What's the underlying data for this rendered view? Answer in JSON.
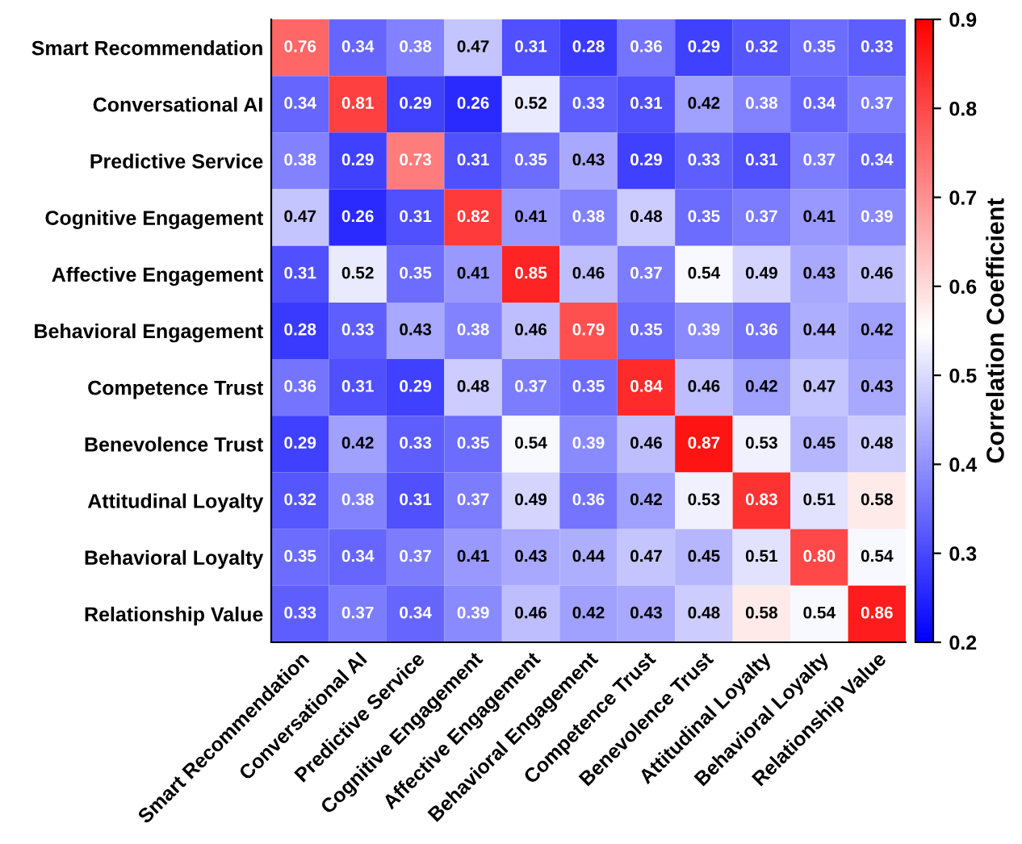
{
  "chart_data": {
    "type": "heatmap",
    "clabel": "Correlation Coefficient",
    "categories": [
      "Smart Recommendation",
      "Conversational AI",
      "Predictive Service",
      "Cognitive Engagement",
      "Affective Engagement",
      "Behavioral Engagement",
      "Competence Trust",
      "Benevolence Trust",
      "Attitudinal Loyalty",
      "Behavioral Loyalty",
      "Relationship Value"
    ],
    "y_categories": [
      "Smart Recommendation",
      "Conversational AI",
      "Predictive Service",
      "Cognitive Engagement",
      "Affective Engagement",
      "Behavioral Engagement",
      "Competence Trust",
      "Benevolence Trust",
      "Attitudinal Loyalty",
      "Behavioral Loyalty",
      "Relationship Value"
    ],
    "cells": [
      [
        0.76,
        0.34,
        0.38,
        0.47,
        0.31,
        0.28,
        0.36,
        0.29,
        0.32,
        0.35,
        0.33
      ],
      [
        0.34,
        0.81,
        0.29,
        0.26,
        0.52,
        0.33,
        0.31,
        0.42,
        0.38,
        0.34,
        0.37
      ],
      [
        0.38,
        0.29,
        0.73,
        0.31,
        0.35,
        0.43,
        0.29,
        0.33,
        0.31,
        0.37,
        0.34
      ],
      [
        0.47,
        0.26,
        0.31,
        0.82,
        0.41,
        0.38,
        0.48,
        0.35,
        0.37,
        0.41,
        0.39
      ],
      [
        0.31,
        0.52,
        0.35,
        0.41,
        0.85,
        0.46,
        0.37,
        0.54,
        0.49,
        0.43,
        0.46
      ],
      [
        0.28,
        0.33,
        0.43,
        0.38,
        0.46,
        0.79,
        0.35,
        0.39,
        0.36,
        0.44,
        0.42
      ],
      [
        0.36,
        0.31,
        0.29,
        0.48,
        0.37,
        0.35,
        0.84,
        0.46,
        0.42,
        0.47,
        0.43
      ],
      [
        0.29,
        0.42,
        0.33,
        0.35,
        0.54,
        0.39,
        0.46,
        0.87,
        0.53,
        0.45,
        0.48
      ],
      [
        0.32,
        0.38,
        0.31,
        0.37,
        0.49,
        0.36,
        0.42,
        0.53,
        0.83,
        0.51,
        0.58
      ],
      [
        0.35,
        0.34,
        0.37,
        0.41,
        0.43,
        0.44,
        0.47,
        0.45,
        0.51,
        0.8,
        0.54
      ],
      [
        0.33,
        0.37,
        0.34,
        0.39,
        0.46,
        0.42,
        0.43,
        0.48,
        0.58,
        0.54,
        0.86
      ]
    ],
    "cell_labels": [
      [
        "0.76",
        "0.34",
        "0.38",
        "0.47",
        "0.31",
        "0.28",
        "0.36",
        "0.29",
        "0.32",
        "0.35",
        "0.33"
      ],
      [
        "0.34",
        "0.81",
        "0.29",
        "0.26",
        "0.52",
        "0.33",
        "0.31",
        "0.42",
        "0.38",
        "0.34",
        "0.37"
      ],
      [
        "0.38",
        "0.29",
        "0.73",
        "0.31",
        "0.35",
        "0.43",
        "0.29",
        "0.33",
        "0.31",
        "0.37",
        "0.34"
      ],
      [
        "0.47",
        "0.26",
        "0.31",
        "0.82",
        "0.41",
        "0.38",
        "0.48",
        "0.35",
        "0.37",
        "0.41",
        "0.39"
      ],
      [
        "0.31",
        "0.52",
        "0.35",
        "0.41",
        "0.85",
        "0.46",
        "0.37",
        "0.54",
        "0.49",
        "0.43",
        "0.46"
      ],
      [
        "0.28",
        "0.33",
        "0.43",
        "0.38",
        "0.46",
        "0.79",
        "0.35",
        "0.39",
        "0.36",
        "0.44",
        "0.42"
      ],
      [
        "0.36",
        "0.31",
        "0.29",
        "0.48",
        "0.37",
        "0.35",
        "0.84",
        "0.46",
        "0.42",
        "0.47",
        "0.43"
      ],
      [
        "0.29",
        "0.42",
        "0.33",
        "0.35",
        "0.54",
        "0.39",
        "0.46",
        "0.87",
        "0.53",
        "0.45",
        "0.48"
      ],
      [
        "0.32",
        "0.38",
        "0.31",
        "0.37",
        "0.49",
        "0.36",
        "0.42",
        "0.53",
        "0.83",
        "0.51",
        "0.58"
      ],
      [
        "0.35",
        "0.34",
        "0.37",
        "0.41",
        "0.43",
        "0.44",
        "0.47",
        "0.45",
        "0.51",
        "0.80",
        "0.54"
      ],
      [
        "0.33",
        "0.37",
        "0.34",
        "0.39",
        "0.46",
        "0.42",
        "0.43",
        "0.48",
        "0.58",
        "0.54",
        "0.86"
      ]
    ],
    "clim": [
      0.2,
      0.9
    ],
    "cticks": [
      0.2,
      0.3,
      0.4,
      0.5,
      0.6,
      0.7,
      0.8,
      0.9
    ]
  }
}
